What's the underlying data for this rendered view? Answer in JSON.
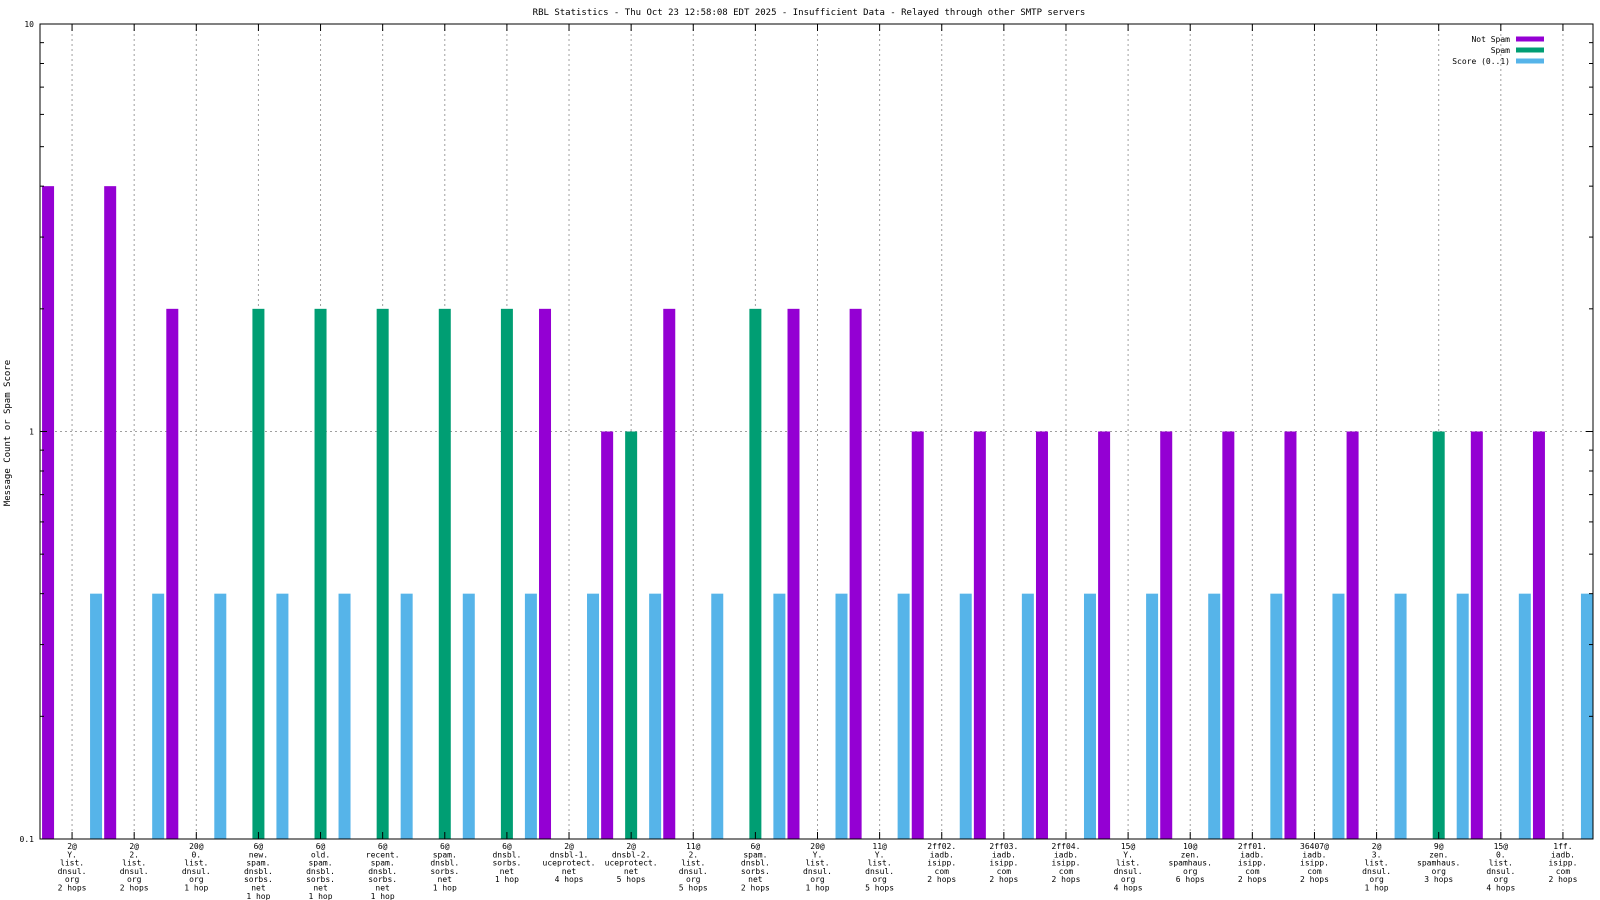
{
  "chart_data": {
    "type": "bar",
    "title": "RBL Statistics - Thu Oct 23 12:58:08 EDT 2025 - Insufficient Data - Relayed through other SMTP servers",
    "ylabel": "Message Count or Spam Score",
    "xlabel": "",
    "yscale": "log",
    "ylim": [
      0.1,
      10
    ],
    "yticks": [
      "0.1",
      "1",
      "10"
    ],
    "grid": true,
    "legend_position": "top-right",
    "categories": [
      [
        "2@",
        "Y.",
        "list.",
        "dnsul.",
        "org",
        "2 hops"
      ],
      [
        "2@",
        "2.",
        "list.",
        "dnsul.",
        "org",
        "2 hops"
      ],
      [
        "20@",
        "0.",
        "list.",
        "dnsul.",
        "org",
        "1 hop"
      ],
      [
        "6@",
        "new.",
        "spam.",
        "dnsbl.",
        "sorbs.",
        "net",
        "1 hop"
      ],
      [
        "6@",
        "old.",
        "spam.",
        "dnsbl.",
        "sorbs.",
        "net",
        "1 hop"
      ],
      [
        "6@",
        "recent.",
        "spam.",
        "dnsbl.",
        "sorbs.",
        "net",
        "1 hop"
      ],
      [
        "6@",
        "spam.",
        "dnsbl.",
        "sorbs.",
        "net",
        "1 hop"
      ],
      [
        "6@",
        "dnsbl.",
        "sorbs.",
        "net",
        "1 hop"
      ],
      [
        "2@",
        "dnsbl-1.",
        "uceprotect.",
        "net",
        "4 hops"
      ],
      [
        "2@",
        "dnsbl-2.",
        "uceprotect.",
        "net",
        "5 hops"
      ],
      [
        "11@",
        "2.",
        "list.",
        "dnsul.",
        "org",
        "5 hops"
      ],
      [
        "6@",
        "spam.",
        "dnsbl.",
        "sorbs.",
        "net",
        "2 hops"
      ],
      [
        "20@",
        "Y.",
        "list.",
        "dnsul.",
        "org",
        "1 hop"
      ],
      [
        "11@",
        "Y.",
        "list.",
        "dnsul.",
        "org",
        "5 hops"
      ],
      [
        "2ff02.",
        "iadb.",
        "isipp.",
        "com",
        "2 hops"
      ],
      [
        "2ff03.",
        "iadb.",
        "isipp.",
        "com",
        "2 hops"
      ],
      [
        "2ff04.",
        "iadb.",
        "isipp.",
        "com",
        "2 hops"
      ],
      [
        "15@",
        "Y.",
        "list.",
        "dnsul.",
        "org",
        "4 hops"
      ],
      [
        "10@",
        "zen.",
        "spamhaus.",
        "org",
        "6 hops"
      ],
      [
        "2ff01.",
        "iadb.",
        "isipp.",
        "com",
        "2 hops"
      ],
      [
        "36407@",
        "iadb.",
        "isipp.",
        "com",
        "2 hops"
      ],
      [
        "2@",
        "3.",
        "list.",
        "dnsul.",
        "org",
        "1 hop"
      ],
      [
        "9@",
        "zen.",
        "spamhaus.",
        "org",
        "3 hops"
      ],
      [
        "15@",
        "0.",
        "list.",
        "dnsul.",
        "org",
        "4 hops"
      ],
      [
        "1ff.",
        "iadb.",
        "isipp.",
        "com",
        "2 hops"
      ]
    ],
    "series": [
      {
        "name": "Not Spam",
        "color": "#9400d3",
        "values": [
          4,
          4,
          2,
          null,
          null,
          null,
          null,
          null,
          2,
          1,
          2,
          null,
          2,
          2,
          1,
          1,
          1,
          1,
          1,
          1,
          1,
          1,
          null,
          1,
          1
        ]
      },
      {
        "name": "Spam",
        "color": "#009e73",
        "values": [
          null,
          null,
          null,
          2,
          2,
          2,
          2,
          2,
          null,
          1,
          null,
          2,
          null,
          null,
          null,
          null,
          null,
          null,
          null,
          null,
          null,
          null,
          1,
          null,
          null
        ]
      },
      {
        "name": "Score (0..1)",
        "color": "#56b4e9",
        "values": [
          0.4,
          0.4,
          0.4,
          0.4,
          0.4,
          0.4,
          0.4,
          0.4,
          0.4,
          0.4,
          0.4,
          0.4,
          0.4,
          0.4,
          0.4,
          0.4,
          0.4,
          0.4,
          0.4,
          0.4,
          0.4,
          0.4,
          0.4,
          0.4,
          0.4
        ]
      }
    ]
  }
}
